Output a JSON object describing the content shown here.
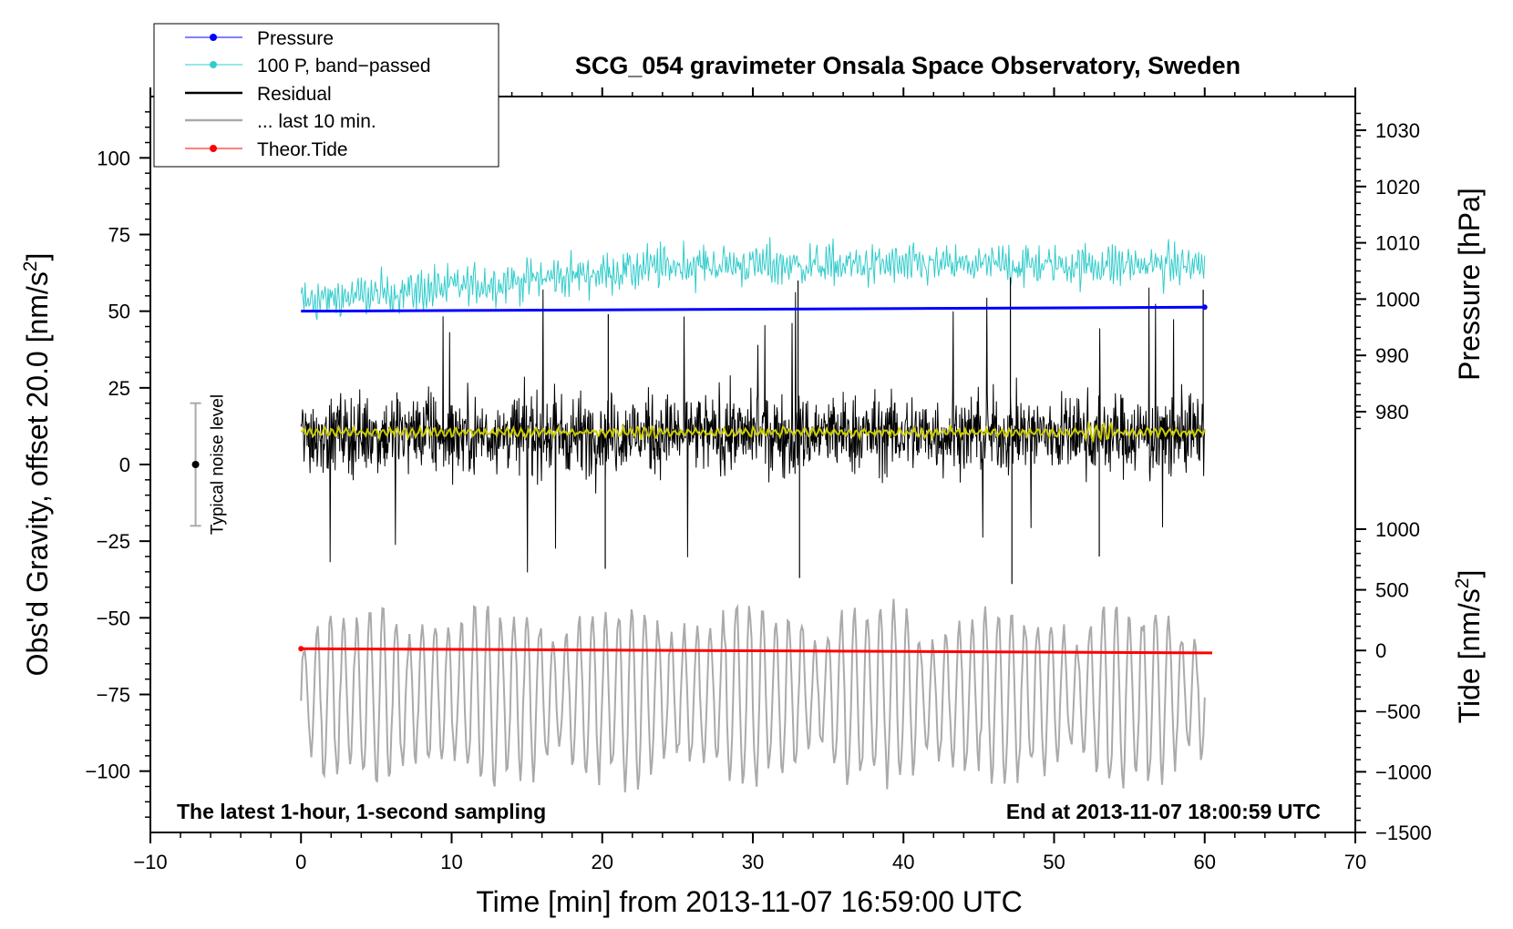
{
  "chart_data": {
    "type": "line",
    "title": "SCG_054 gravimeter Onsala Space Observatory, Sweden",
    "xlabel": "Time [min] from 2013-11-07 16:59:00 UTC",
    "ylabel": "Obs'd Gravity, offset 20.0 [nm/s",
    "ylabel_sup": "2",
    "ylabel_end": "]",
    "y2label": "Pressure [hPa]",
    "y3label": "Tide [nm/s",
    "y3label_sup": "2",
    "y3label_end": "]",
    "xlim": [
      -10,
      70
    ],
    "ylim": [
      -120,
      120
    ],
    "y2lim": [
      965,
      1035
    ],
    "y3lim": [
      -1500,
      1000
    ],
    "x_ticks": [
      -10,
      0,
      10,
      20,
      30,
      40,
      50,
      60,
      70
    ],
    "x_tick_labels": [
      "−10",
      "0",
      "10",
      "20",
      "30",
      "40",
      "50",
      "60",
      "70"
    ],
    "y_ticks": [
      -100,
      -75,
      -50,
      -25,
      0,
      25,
      50,
      75,
      100
    ],
    "y_tick_labels": [
      "−100",
      "−75",
      "−50",
      "−25",
      "0",
      "25",
      "50",
      "75",
      "100"
    ],
    "y2_ticks": [
      980,
      990,
      1000,
      1010,
      1020,
      1030
    ],
    "y2_tick_labels": [
      "980",
      "990",
      "1000",
      "1010",
      "1020",
      "1030"
    ],
    "y3_ticks": [
      -1500,
      -1000,
      -500,
      0,
      500,
      1000
    ],
    "y3_tick_labels": [
      "−1500",
      "−1000",
      "−500",
      "0",
      "500",
      "1000"
    ],
    "legend": {
      "position": "top-left",
      "entries": [
        {
          "label": "Pressure",
          "color": "#0000ff",
          "marker": true
        },
        {
          "label": "100 P, band−passed",
          "color": "#33cccc",
          "marker": true
        },
        {
          "label": "Residual",
          "color": "#000000",
          "marker": false
        },
        {
          "label": "... last 10 min.",
          "color": "#aaaaaa",
          "marker": false
        },
        {
          "label": "Theor.Tide",
          "color": "#ff0000",
          "marker": true
        }
      ]
    },
    "series": [
      {
        "name": "Pressure",
        "axis": "y",
        "color": "#0000ff",
        "x": [
          0,
          60
        ],
        "values": [
          50.0,
          51.3
        ]
      },
      {
        "name": "100 P, band−passed",
        "axis": "y",
        "color": "#33cccc",
        "x_range": [
          0,
          60
        ],
        "mean_start": 53,
        "mean_end": 65,
        "amplitude": 5
      },
      {
        "name": "Residual",
        "axis": "y",
        "color": "#000000",
        "x_range": [
          0,
          60
        ],
        "mean": 10,
        "typical_range": [
          -10,
          30
        ],
        "extremes": [
          -39,
          61
        ]
      },
      {
        "name": "Residual smoothed",
        "axis": "y",
        "color": "#cccc00",
        "x_range": [
          0,
          60
        ],
        "mean": 10.5
      },
      {
        "name": "... last 10 min.",
        "axis": "y",
        "color": "#aaaaaa",
        "x_range": [
          0,
          60
        ],
        "mean": -75,
        "range": [
          -110,
          -35
        ]
      },
      {
        "name": "Theor.Tide",
        "axis": "y3",
        "color": "#ff0000",
        "x": [
          0,
          60.5
        ],
        "values": [
          15,
          -20
        ]
      }
    ],
    "noise_level": {
      "label": "Typical noise level",
      "x": -7,
      "center": 0,
      "low": -20,
      "high": 20
    },
    "annotations": {
      "bottom_left": "The latest 1-hour, 1-second sampling",
      "bottom_right": "End at 2013-11-07 18:00:59 UTC"
    }
  }
}
